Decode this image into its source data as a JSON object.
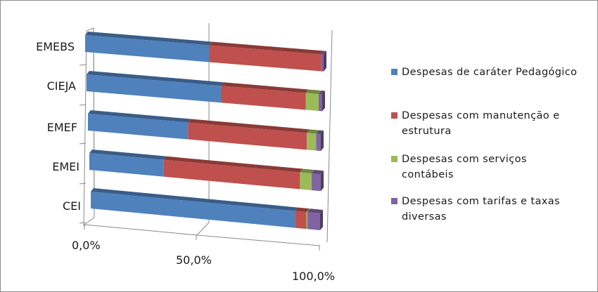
{
  "chart_data": {
    "type": "bar",
    "orientation": "horizontal",
    "stacked": "100%",
    "style": "3d",
    "title": "",
    "xlabel": "",
    "ylabel": "",
    "categories": [
      "CEI",
      "EMEI",
      "EMEF",
      "CIEJA",
      "EMEBS"
    ],
    "category_order_display": [
      "EMEBS",
      "CIEJA",
      "EMEF",
      "EMEI",
      "CEI"
    ],
    "xlim": [
      0,
      100
    ],
    "x_ticks": [
      "0,0%",
      "50,0%",
      "100,0%"
    ],
    "grid": true,
    "legend_position": "right",
    "series": [
      {
        "name": "Despesas de caráter Pedagógico",
        "color": "#4F81BD",
        "values": [
          89.0,
          32.0,
          43.0,
          57.0,
          52.0
        ]
      },
      {
        "name": "Despesas com manutenção e estrutura",
        "color": "#C0504D",
        "values": [
          5.0,
          59.0,
          51.0,
          36.0,
          47.0
        ]
      },
      {
        "name": "Despesas com serviços contábeis",
        "color": "#9BBB59",
        "values": [
          0.5,
          5.0,
          4.0,
          5.5,
          0.0
        ]
      },
      {
        "name": "Despesas com tarifas e taxas diversas",
        "color": "#8064A2",
        "values": [
          5.5,
          4.0,
          2.0,
          1.5,
          1.0
        ]
      }
    ]
  },
  "legend": {
    "items": [
      {
        "label": "Despesas de caráter Pedagógico",
        "color": "#4F81BD"
      },
      {
        "label": "Despesas com manutenção e\nestrutura",
        "color": "#C0504D"
      },
      {
        "label": "Despesas com serviços\ncontábeis",
        "color": "#9BBB59"
      },
      {
        "label": "Despesas com tarifas e taxas\ndiversas",
        "color": "#8064A2"
      }
    ]
  }
}
